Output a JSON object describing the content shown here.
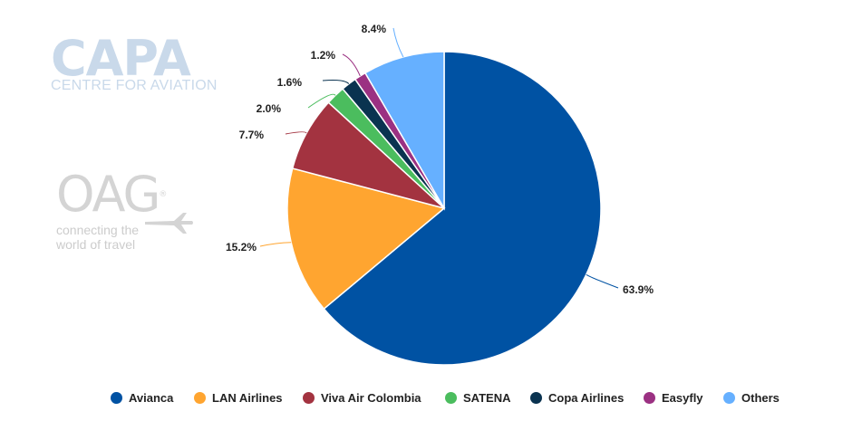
{
  "logos": {
    "capa_name": "CAPA",
    "capa_tagline": "CENTRE FOR AVIATION",
    "oag_name": "OAG",
    "oag_mark": "®",
    "oag_tagline_1": "connecting the",
    "oag_tagline_2": "world of travel"
  },
  "colors": {
    "Avianca": "#0052a3",
    "LAN Airlines": "#ffa530",
    "Viva Air Colombia": "#a33340",
    "SATENA": "#4bbd5e",
    "Copa Airlines": "#0a3350",
    "Easyfly": "#9b3182",
    "Others": "#66b0ff"
  },
  "chart_data": {
    "type": "pie",
    "title": "",
    "start_angle_deg": 0,
    "direction": "clockwise",
    "slices": [
      {
        "label": "Avianca",
        "value": 63.9,
        "display": "63.9%"
      },
      {
        "label": "LAN Airlines",
        "value": 15.2,
        "display": "15.2%"
      },
      {
        "label": "Viva Air Colombia",
        "value": 7.7,
        "display": "7.7%"
      },
      {
        "label": "SATENA",
        "value": 2.0,
        "display": "2.0%"
      },
      {
        "label": "Copa Airlines",
        "value": 1.6,
        "display": "1.6%"
      },
      {
        "label": "Easyfly",
        "value": 1.2,
        "display": "1.2%"
      },
      {
        "label": "Others",
        "value": 8.4,
        "display": "8.4%"
      }
    ],
    "legend_position": "bottom-center"
  }
}
